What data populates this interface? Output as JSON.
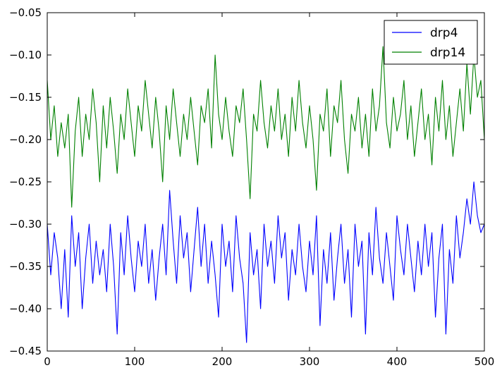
{
  "chart_data": {
    "type": "line",
    "title": "",
    "xlabel": "",
    "ylabel": "",
    "xlim": [
      0,
      500
    ],
    "ylim": [
      -0.45,
      -0.05
    ],
    "x_ticks": [
      0,
      100,
      200,
      300,
      400,
      500
    ],
    "x_tick_labels": [
      "0",
      "100",
      "200",
      "300",
      "400",
      "500"
    ],
    "y_ticks": [
      -0.45,
      -0.4,
      -0.35,
      -0.3,
      -0.25,
      -0.2,
      -0.15,
      -0.1,
      -0.05
    ],
    "y_tick_labels": [
      "−0.45",
      "−0.40",
      "−0.35",
      "−0.30",
      "−0.25",
      "−0.20",
      "−0.15",
      "−0.10",
      "−0.05"
    ],
    "grid": false,
    "legend_position": "top-right",
    "sample_step": 4,
    "series": [
      {
        "name": "drp4",
        "color": "#0000ff",
        "x": [
          0,
          4,
          8,
          12,
          16,
          20,
          24,
          28,
          32,
          36,
          40,
          44,
          48,
          52,
          56,
          60,
          64,
          68,
          72,
          76,
          80,
          84,
          88,
          92,
          96,
          100,
          104,
          108,
          112,
          116,
          120,
          124,
          128,
          132,
          136,
          140,
          144,
          148,
          152,
          156,
          160,
          164,
          168,
          172,
          176,
          180,
          184,
          188,
          192,
          196,
          200,
          204,
          208,
          212,
          216,
          220,
          224,
          228,
          232,
          236,
          240,
          244,
          248,
          252,
          256,
          260,
          264,
          268,
          272,
          276,
          280,
          284,
          288,
          292,
          296,
          300,
          304,
          308,
          312,
          316,
          320,
          324,
          328,
          332,
          336,
          340,
          344,
          348,
          352,
          356,
          360,
          364,
          368,
          372,
          376,
          380,
          384,
          388,
          392,
          396,
          400,
          404,
          408,
          412,
          416,
          420,
          424,
          428,
          432,
          436,
          440,
          444,
          448,
          452,
          456,
          460,
          464,
          468,
          472,
          476,
          480,
          484,
          488,
          492,
          496,
          500
        ],
        "values": [
          -0.3,
          -0.36,
          -0.31,
          -0.34,
          -0.4,
          -0.33,
          -0.41,
          -0.29,
          -0.35,
          -0.31,
          -0.4,
          -0.34,
          -0.3,
          -0.37,
          -0.32,
          -0.36,
          -0.33,
          -0.38,
          -0.3,
          -0.35,
          -0.43,
          -0.31,
          -0.36,
          -0.29,
          -0.34,
          -0.38,
          -0.32,
          -0.35,
          -0.3,
          -0.37,
          -0.33,
          -0.39,
          -0.34,
          -0.3,
          -0.36,
          -0.26,
          -0.32,
          -0.37,
          -0.29,
          -0.34,
          -0.31,
          -0.38,
          -0.33,
          -0.28,
          -0.35,
          -0.3,
          -0.37,
          -0.32,
          -0.36,
          -0.41,
          -0.3,
          -0.35,
          -0.32,
          -0.38,
          -0.29,
          -0.34,
          -0.37,
          -0.44,
          -0.31,
          -0.36,
          -0.33,
          -0.4,
          -0.3,
          -0.35,
          -0.32,
          -0.37,
          -0.29,
          -0.34,
          -0.31,
          -0.39,
          -0.33,
          -0.36,
          -0.3,
          -0.35,
          -0.38,
          -0.32,
          -0.36,
          -0.29,
          -0.42,
          -0.33,
          -0.37,
          -0.31,
          -0.39,
          -0.34,
          -0.3,
          -0.37,
          -0.33,
          -0.41,
          -0.3,
          -0.35,
          -0.32,
          -0.43,
          -0.31,
          -0.36,
          -0.28,
          -0.34,
          -0.37,
          -0.31,
          -0.35,
          -0.39,
          -0.29,
          -0.33,
          -0.36,
          -0.3,
          -0.34,
          -0.38,
          -0.32,
          -0.36,
          -0.3,
          -0.35,
          -0.31,
          -0.41,
          -0.34,
          -0.3,
          -0.43,
          -0.33,
          -0.37,
          -0.29,
          -0.34,
          -0.31,
          -0.27,
          -0.3,
          -0.25,
          -0.29,
          -0.31,
          -0.3
        ]
      },
      {
        "name": "drp14",
        "color": "#008000",
        "x": [
          0,
          4,
          8,
          12,
          16,
          20,
          24,
          28,
          32,
          36,
          40,
          44,
          48,
          52,
          56,
          60,
          64,
          68,
          72,
          76,
          80,
          84,
          88,
          92,
          96,
          100,
          104,
          108,
          112,
          116,
          120,
          124,
          128,
          132,
          136,
          140,
          144,
          148,
          152,
          156,
          160,
          164,
          168,
          172,
          176,
          180,
          184,
          188,
          192,
          196,
          200,
          204,
          208,
          212,
          216,
          220,
          224,
          228,
          232,
          236,
          240,
          244,
          248,
          252,
          256,
          260,
          264,
          268,
          272,
          276,
          280,
          284,
          288,
          292,
          296,
          300,
          304,
          308,
          312,
          316,
          320,
          324,
          328,
          332,
          336,
          340,
          344,
          348,
          352,
          356,
          360,
          364,
          368,
          372,
          376,
          380,
          384,
          388,
          392,
          396,
          400,
          404,
          408,
          412,
          416,
          420,
          424,
          428,
          432,
          436,
          440,
          444,
          448,
          452,
          456,
          460,
          464,
          468,
          472,
          476,
          480,
          484,
          488,
          492,
          496,
          500
        ],
        "values": [
          -0.13,
          -0.2,
          -0.16,
          -0.22,
          -0.18,
          -0.21,
          -0.17,
          -0.28,
          -0.19,
          -0.15,
          -0.22,
          -0.17,
          -0.2,
          -0.14,
          -0.18,
          -0.25,
          -0.16,
          -0.21,
          -0.15,
          -0.19,
          -0.24,
          -0.17,
          -0.2,
          -0.14,
          -0.18,
          -0.22,
          -0.16,
          -0.19,
          -0.13,
          -0.17,
          -0.21,
          -0.15,
          -0.19,
          -0.25,
          -0.16,
          -0.2,
          -0.14,
          -0.18,
          -0.22,
          -0.17,
          -0.2,
          -0.15,
          -0.19,
          -0.23,
          -0.16,
          -0.18,
          -0.14,
          -0.21,
          -0.1,
          -0.17,
          -0.2,
          -0.15,
          -0.19,
          -0.22,
          -0.16,
          -0.18,
          -0.14,
          -0.2,
          -0.27,
          -0.17,
          -0.19,
          -0.13,
          -0.18,
          -0.21,
          -0.16,
          -0.19,
          -0.14,
          -0.2,
          -0.17,
          -0.22,
          -0.15,
          -0.19,
          -0.13,
          -0.18,
          -0.21,
          -0.16,
          -0.2,
          -0.26,
          -0.17,
          -0.19,
          -0.14,
          -0.22,
          -0.16,
          -0.18,
          -0.13,
          -0.2,
          -0.24,
          -0.17,
          -0.19,
          -0.15,
          -0.21,
          -0.17,
          -0.22,
          -0.14,
          -0.19,
          -0.16,
          -0.09,
          -0.18,
          -0.21,
          -0.15,
          -0.19,
          -0.17,
          -0.13,
          -0.2,
          -0.16,
          -0.22,
          -0.18,
          -0.14,
          -0.2,
          -0.17,
          -0.23,
          -0.15,
          -0.19,
          -0.13,
          -0.2,
          -0.16,
          -0.22,
          -0.18,
          -0.14,
          -0.19,
          -0.11,
          -0.17,
          -0.1,
          -0.15,
          -0.13,
          -0.2
        ]
      }
    ]
  }
}
